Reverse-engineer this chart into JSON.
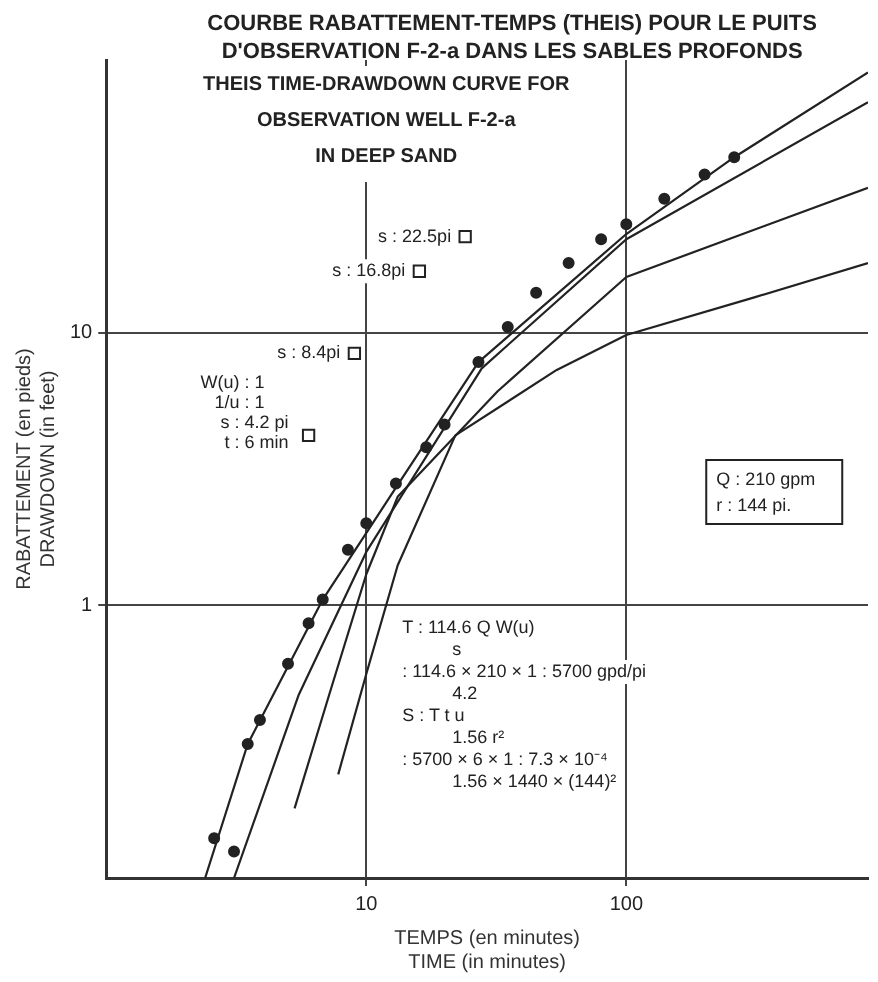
{
  "chart_data": {
    "type": "line",
    "title": "COURBE RABATTEMENT-TEMPS (THEIS) POUR LE PUITS\nD'OBSERVATION F-2-a DANS LES SABLES PROFONDS",
    "subtitle": "THEIS TIME-DRAWDOWN CURVE FOR\nOBSERVATION WELL F-2-a\nIN DEEP SAND",
    "xlabel": "TEMPS (en minutes)\nTIME (in minutes)",
    "ylabel": "RABATTEMENT (en pieds)\nDRAWDOWN (in feet)",
    "log": "xy",
    "grid": true,
    "xlim": [
      1,
      850
    ],
    "ylim": [
      0.1,
      100
    ],
    "xticks": [
      10,
      100
    ],
    "yticks": [
      1,
      10
    ],
    "series": [
      {
        "type": "scatter",
        "marker": "circle",
        "color": "#222222",
        "x": [
          2.6,
          3.1,
          3.5,
          3.9,
          5,
          6,
          6.8,
          8.5,
          10,
          13,
          17,
          20,
          27,
          35,
          45,
          60,
          80,
          100,
          140,
          200,
          260
        ],
        "values": [
          0.14,
          0.125,
          0.31,
          0.38,
          0.61,
          0.86,
          1.05,
          1.6,
          2.0,
          2.8,
          3.8,
          4.6,
          7.8,
          10.5,
          14,
          18,
          22,
          25,
          31,
          38,
          44
        ]
      },
      {
        "marker": "none",
        "color": "#222222",
        "x": [
          2.4,
          3.5,
          6.8,
          13,
          27,
          100,
          260,
          850
        ],
        "values": [
          0.1,
          0.31,
          1.05,
          2.7,
          7.8,
          23,
          44,
          90
        ]
      },
      {
        "marker": "none",
        "color": "#222222",
        "x": [
          3.1,
          5.5,
          10,
          27.8,
          100,
          850
        ],
        "values": [
          0.1,
          0.47,
          1.57,
          7.4,
          22,
          70
        ]
      },
      {
        "marker": "none",
        "color": "#222222",
        "x": [
          5.3,
          7.2,
          10,
          13.2,
          32,
          100,
          850
        ],
        "values": [
          0.18,
          0.47,
          1.3,
          2.5,
          6.1,
          16,
          34
        ]
      },
      {
        "marker": "none",
        "color": "#222222",
        "x": [
          7.8,
          10,
          13.2,
          22,
          54,
          100,
          313,
          850
        ],
        "values": [
          0.24,
          0.56,
          1.4,
          4.2,
          7.3,
          9.8,
          13.5,
          18
        ]
      },
      {
        "type": "scatter",
        "marker": "square",
        "color": "#222222",
        "x": [
          24,
          16,
          9,
          6
        ],
        "values": [
          22.5,
          16.8,
          8.4,
          4.2
        ]
      }
    ],
    "annotations": [
      {
        "text": "s : 22.5pi",
        "x": 24,
        "y": 22.5
      },
      {
        "text": "s : 16.8pi",
        "x": 16,
        "y": 16.8
      },
      {
        "text": "s : 8.4pi",
        "x": 9,
        "y": 8.4
      },
      {
        "text": "W(u) : 1\n1/u : 1\ns : 4.2 pi\nt : 6 min",
        "x": 6,
        "y": 4.2
      },
      "Q : 210 gpm\nr : 144 pi.",
      "T : 114.6 Q W(u)\ns\n: 114.6 × 210 × 1 : 5700 gpd/pi\n4.2\nS : T t u\n1.56 r²\n: 5700 × 6 × 1 : 7.3 × 10⁻⁴\n1.56 × 1440 × (144)²"
    ]
  }
}
